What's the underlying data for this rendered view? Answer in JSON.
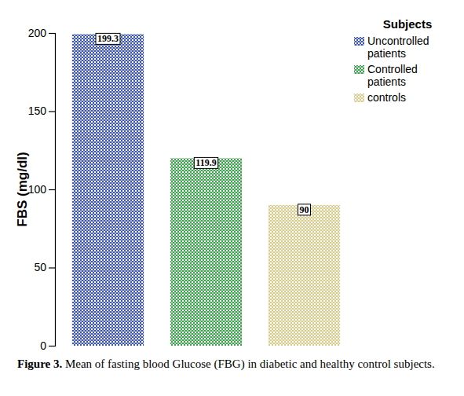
{
  "chart_data": {
    "type": "bar",
    "title": "Figure 3. Mean of fasting blood Glucose (FBG) in diabetic and healthy control subjects.",
    "y_label": "FBS (mg/dl)",
    "legend_title": "Subjects",
    "categories": [
      "Uncontrolled patients",
      "Controlled patients",
      "controls"
    ],
    "values": [
      199.3,
      119.9,
      90
    ],
    "colors": [
      "#3f57a8",
      "#3fa24f",
      "#d8cc8c"
    ],
    "ylim": [
      0,
      200
    ],
    "yticks": [
      0,
      50,
      100,
      150,
      200
    ],
    "data_labels": true,
    "legend": "upper right",
    "tick_labels": "y",
    "grid": false
  }
}
